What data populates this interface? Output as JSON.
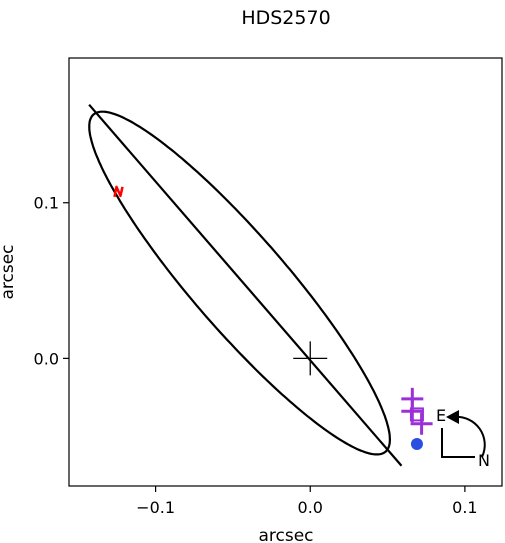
{
  "chart_data": {
    "type": "scatter",
    "title": "HDS2570",
    "xlabel": "arcsec",
    "ylabel": "arcsec",
    "xlim": [
      -0.156,
      0.124
    ],
    "ylim": [
      -0.082,
      0.193
    ],
    "x_ticks": [
      {
        "value": -0.1,
        "label": "−0.1"
      },
      {
        "value": 0.0,
        "label": "0.0"
      },
      {
        "value": 0.1,
        "label": "0.1"
      }
    ],
    "y_ticks": [
      {
        "value": 0.0,
        "label": "0.0"
      },
      {
        "value": 0.1,
        "label": "0.1"
      }
    ],
    "grid": false,
    "primary_star": {
      "x": 0.0,
      "y": 0.0,
      "marker": "plus",
      "color": "#000000"
    },
    "orbit_ellipse": {
      "center": [
        -0.0457,
        0.0484
      ],
      "semi_major": 0.1437,
      "semi_minor": 0.0304,
      "orientation_deg": -48.9,
      "color": "#000000"
    },
    "line_of_nodes": {
      "x": [
        -0.143,
        0.059
      ],
      "y": [
        0.163,
        -0.069
      ],
      "color": "#000000"
    },
    "periastron_tick": {
      "x": -0.124,
      "y": 0.107,
      "color": "#ff0000"
    },
    "observations": {
      "marker": "plus",
      "color": "#9b30d9",
      "points": [
        {
          "x": 0.066,
          "y": -0.026
        },
        {
          "x": 0.066,
          "y": -0.034
        },
        {
          "x": 0.072,
          "y": -0.042
        }
      ]
    },
    "observation_box": {
      "x": 0.069,
      "y": -0.036,
      "marker": "square",
      "color": "#9b30d9"
    },
    "predicted_position": {
      "x": 0.069,
      "y": -0.055,
      "marker": "circle",
      "color": "#2a4fe0"
    },
    "orientation_indicator": {
      "east_label": "E",
      "north_label": "N",
      "color": "#000000"
    }
  }
}
